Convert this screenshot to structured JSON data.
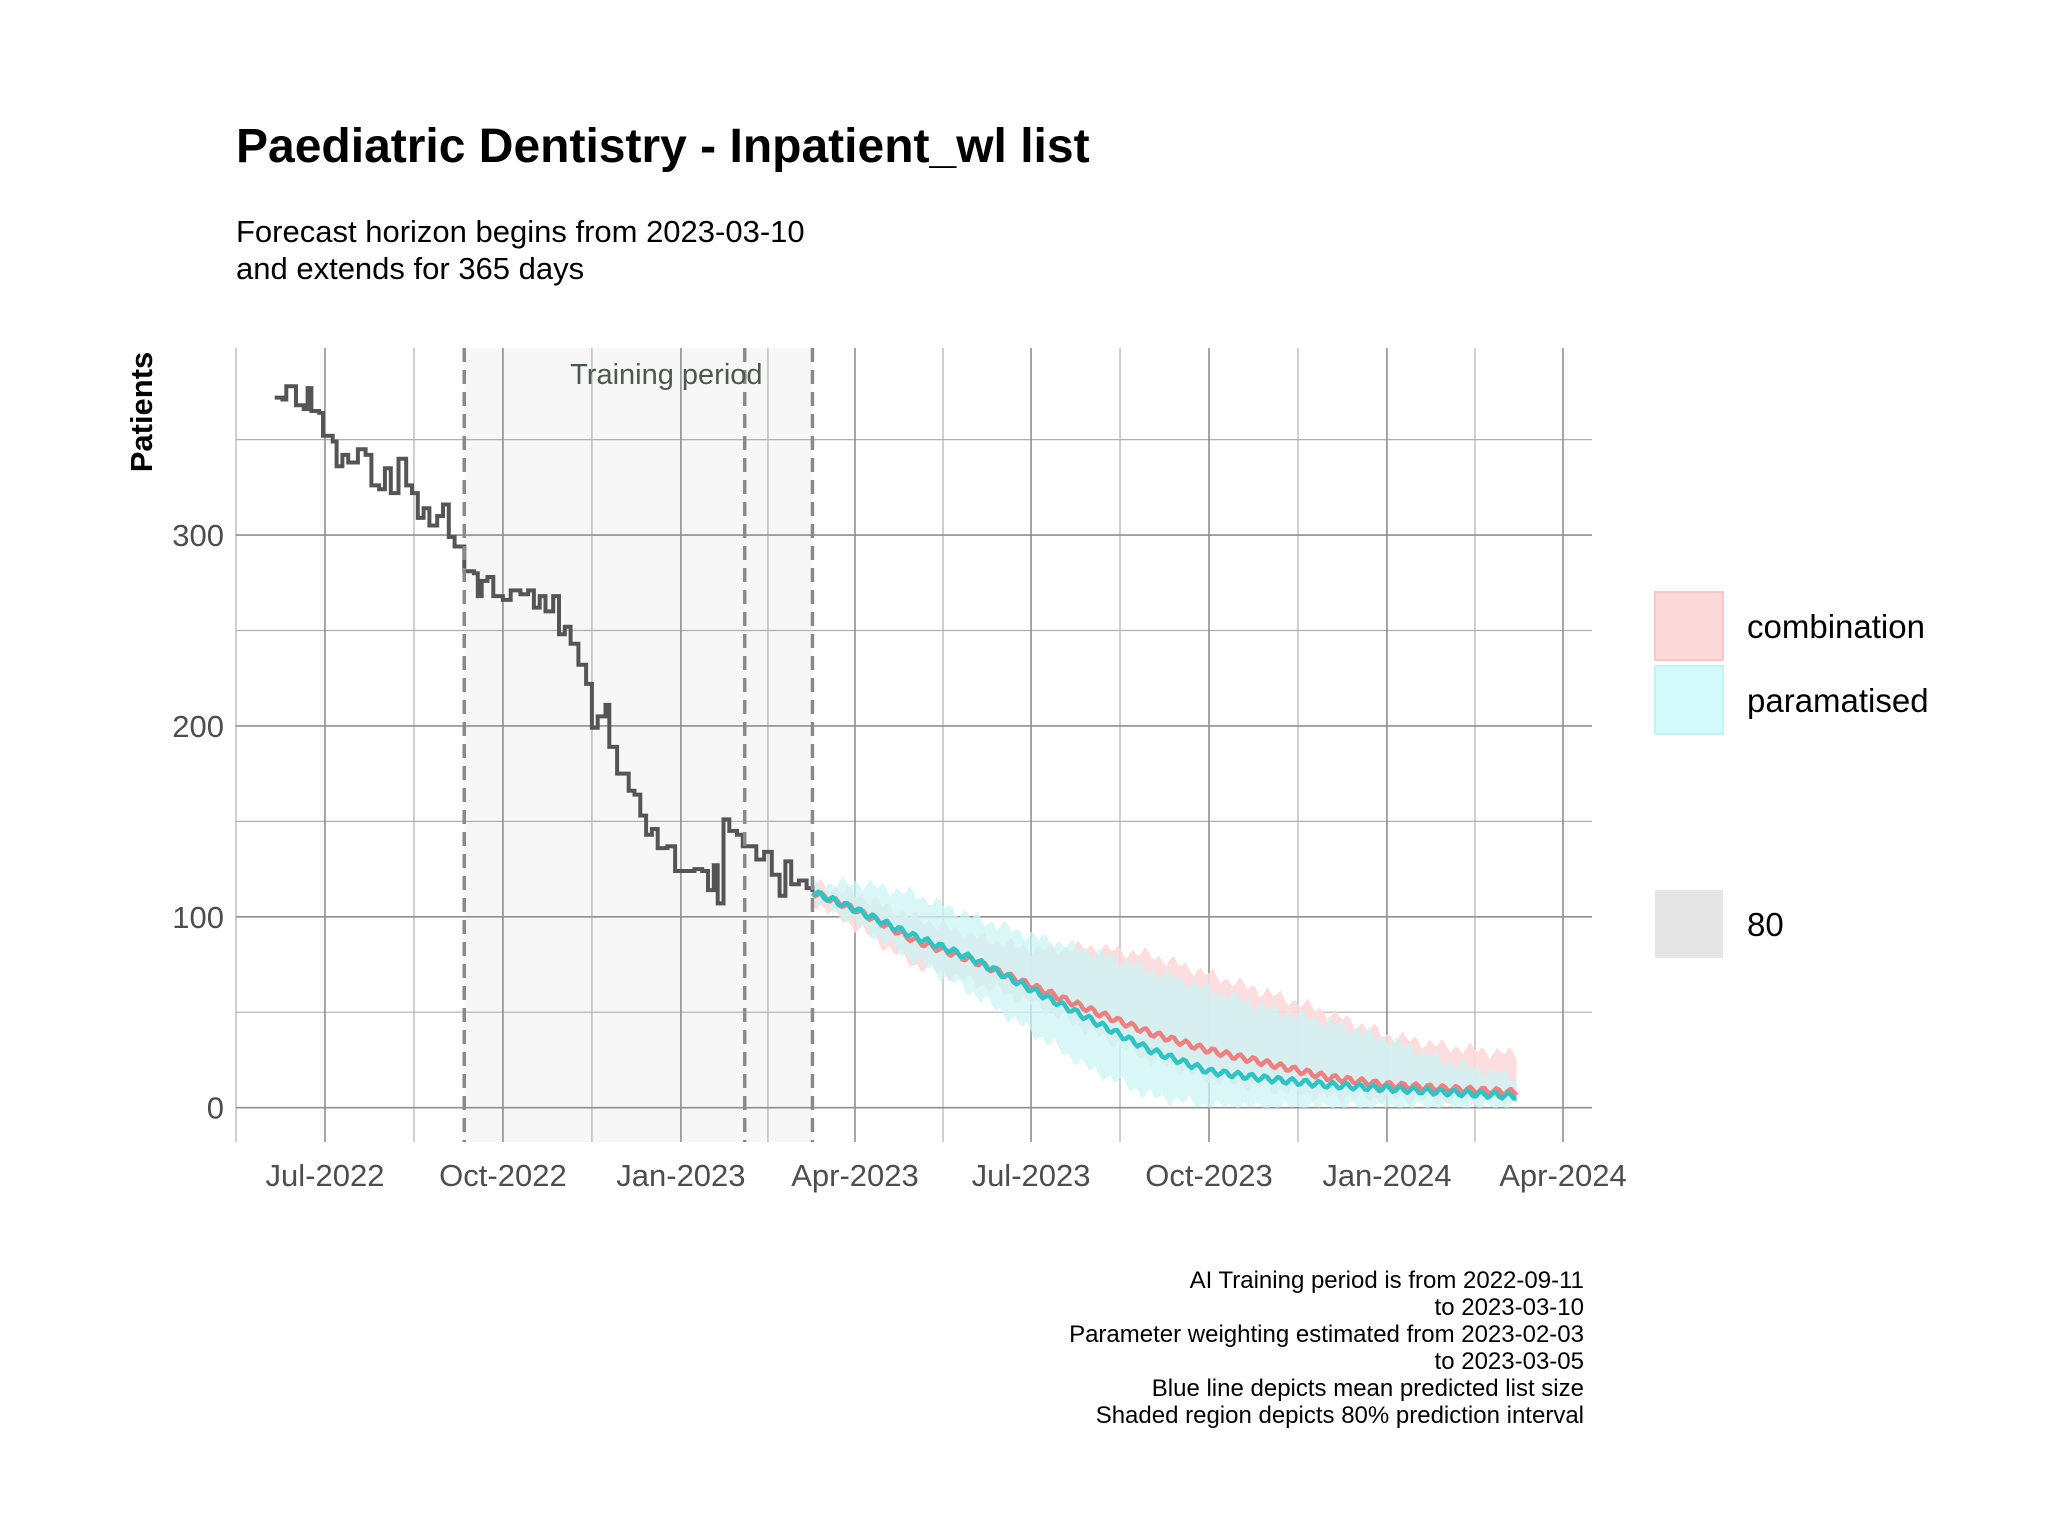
{
  "chart_data": {
    "type": "line",
    "title": "Paediatric Dentistry - Inpatient_wl list",
    "subtitle_lines": [
      "Forecast horizon begins from 2023-03-10",
      "and extends for 365 days"
    ],
    "ylabel": "Patients",
    "xlabel": "",
    "x_axis": {
      "type": "date",
      "range": [
        "2022-05-16",
        "2024-04-16"
      ],
      "ticks": [
        "2022-07-01",
        "2022-10-01",
        "2023-01-01",
        "2023-04-01",
        "2023-07-01",
        "2023-10-01",
        "2024-01-01",
        "2024-04-01"
      ],
      "tick_labels": [
        "Jul-2022",
        "Oct-2022",
        "Jan-2023",
        "Apr-2023",
        "Jul-2023",
        "Oct-2023",
        "Jan-2024",
        "Apr-2024"
      ]
    },
    "y_axis": {
      "range": [
        -18,
        398
      ],
      "ticks": [
        0,
        100,
        200,
        300
      ],
      "tick_labels": [
        "0",
        "100",
        "200",
        "300"
      ]
    },
    "grid": true,
    "training_period": {
      "start": "2022-09-11",
      "end": "2023-03-10",
      "label": "Training period"
    },
    "vlines": [
      "2022-09-11",
      "2023-02-03",
      "2023-03-10"
    ],
    "observed": {
      "color": "#555555",
      "points": [
        [
          "2022-06-05",
          372
        ],
        [
          "2022-06-09",
          371
        ],
        [
          "2022-06-11",
          378
        ],
        [
          "2022-06-14",
          378
        ],
        [
          "2022-06-16",
          368
        ],
        [
          "2022-06-20",
          366
        ],
        [
          "2022-06-22",
          377
        ],
        [
          "2022-06-24",
          365
        ],
        [
          "2022-06-28",
          364
        ],
        [
          "2022-06-30",
          352
        ],
        [
          "2022-07-05",
          349
        ],
        [
          "2022-07-07",
          336
        ],
        [
          "2022-07-10",
          342
        ],
        [
          "2022-07-13",
          338
        ],
        [
          "2022-07-18",
          345
        ],
        [
          "2022-07-22",
          342
        ],
        [
          "2022-07-25",
          326
        ],
        [
          "2022-07-29",
          324
        ],
        [
          "2022-08-01",
          335
        ],
        [
          "2022-08-04",
          322
        ],
        [
          "2022-08-08",
          340
        ],
        [
          "2022-08-12",
          326
        ],
        [
          "2022-08-15",
          322
        ],
        [
          "2022-08-18",
          309
        ],
        [
          "2022-08-21",
          314
        ],
        [
          "2022-08-24",
          305
        ],
        [
          "2022-08-28",
          310
        ],
        [
          "2022-08-31",
          316
        ],
        [
          "2022-09-03",
          299
        ],
        [
          "2022-09-06",
          294
        ],
        [
          "2022-09-11",
          281
        ],
        [
          "2022-09-16",
          280
        ],
        [
          "2022-09-18",
          268
        ],
        [
          "2022-09-20",
          276
        ],
        [
          "2022-09-23",
          278
        ],
        [
          "2022-09-26",
          268
        ],
        [
          "2022-10-01",
          266
        ],
        [
          "2022-10-05",
          271
        ],
        [
          "2022-10-10",
          269
        ],
        [
          "2022-10-14",
          271
        ],
        [
          "2022-10-17",
          262
        ],
        [
          "2022-10-20",
          268
        ],
        [
          "2022-10-23",
          260
        ],
        [
          "2022-10-27",
          268
        ],
        [
          "2022-10-30",
          248
        ],
        [
          "2022-11-02",
          252
        ],
        [
          "2022-11-05",
          243
        ],
        [
          "2022-11-09",
          232
        ],
        [
          "2022-11-13",
          222
        ],
        [
          "2022-11-16",
          199
        ],
        [
          "2022-11-19",
          205
        ],
        [
          "2022-11-23",
          211
        ],
        [
          "2022-11-25",
          189
        ],
        [
          "2022-11-29",
          175
        ],
        [
          "2022-12-02",
          175
        ],
        [
          "2022-12-05",
          166
        ],
        [
          "2022-12-08",
          164
        ],
        [
          "2022-12-11",
          153
        ],
        [
          "2022-12-14",
          143
        ],
        [
          "2022-12-17",
          146
        ],
        [
          "2022-12-20",
          136
        ],
        [
          "2022-12-25",
          137
        ],
        [
          "2022-12-29",
          124
        ],
        [
          "2023-01-03",
          124
        ],
        [
          "2023-01-08",
          125
        ],
        [
          "2023-01-12",
          124
        ],
        [
          "2023-01-15",
          114
        ],
        [
          "2023-01-18",
          127
        ],
        [
          "2023-01-20",
          107
        ],
        [
          "2023-01-23",
          151
        ],
        [
          "2023-01-26",
          145
        ],
        [
          "2023-01-30",
          143
        ],
        [
          "2023-02-02",
          137
        ],
        [
          "2023-02-05",
          137
        ],
        [
          "2023-02-09",
          130
        ],
        [
          "2023-02-13",
          134
        ],
        [
          "2023-02-17",
          122
        ],
        [
          "2023-02-21",
          111
        ],
        [
          "2023-02-24",
          129
        ],
        [
          "2023-02-27",
          117
        ],
        [
          "2023-03-03",
          119
        ],
        [
          "2023-03-07",
          115
        ],
        [
          "2023-03-10",
          113
        ]
      ]
    },
    "series": [
      {
        "name": "combination",
        "color": "#f08080",
        "band_color": "#fcdada",
        "mean": [
          [
            "2023-03-10",
            113
          ],
          [
            "2023-04-01",
            104
          ],
          [
            "2023-05-01",
            88
          ],
          [
            "2023-06-01",
            77
          ],
          [
            "2023-07-01",
            64
          ],
          [
            "2023-08-01",
            51
          ],
          [
            "2023-09-01",
            39
          ],
          [
            "2023-10-01",
            30
          ],
          [
            "2023-11-01",
            23
          ],
          [
            "2023-12-01",
            16
          ],
          [
            "2024-01-01",
            12
          ],
          [
            "2024-02-01",
            10
          ],
          [
            "2024-03-08",
            8
          ]
        ],
        "lower": [
          [
            "2023-03-10",
            108
          ],
          [
            "2023-04-01",
            95
          ],
          [
            "2023-05-01",
            75
          ],
          [
            "2023-06-01",
            66
          ],
          [
            "2023-07-01",
            55
          ],
          [
            "2023-08-01",
            40
          ],
          [
            "2023-09-01",
            25
          ],
          [
            "2023-10-01",
            15
          ],
          [
            "2023-11-01",
            10
          ],
          [
            "2023-12-01",
            6
          ],
          [
            "2024-01-01",
            5
          ],
          [
            "2024-02-01",
            4
          ],
          [
            "2024-03-08",
            4
          ]
        ],
        "upper": [
          [
            "2023-03-10",
            118
          ],
          [
            "2023-04-01",
            112
          ],
          [
            "2023-05-01",
            100
          ],
          [
            "2023-06-01",
            90
          ],
          [
            "2023-07-01",
            83
          ],
          [
            "2023-08-01",
            84
          ],
          [
            "2023-09-01",
            80
          ],
          [
            "2023-10-01",
            70
          ],
          [
            "2023-11-01",
            60
          ],
          [
            "2023-12-01",
            50
          ],
          [
            "2024-01-01",
            38
          ],
          [
            "2024-02-01",
            32
          ],
          [
            "2024-03-08",
            28
          ]
        ]
      },
      {
        "name": "paramatised",
        "color": "#2ec4c4",
        "band_color": "#ccf4f4",
        "mean": [
          [
            "2023-03-10",
            113
          ],
          [
            "2023-04-01",
            104
          ],
          [
            "2023-05-01",
            90
          ],
          [
            "2023-06-01",
            78
          ],
          [
            "2023-07-01",
            62
          ],
          [
            "2023-08-01",
            46
          ],
          [
            "2023-09-01",
            30
          ],
          [
            "2023-10-01",
            19
          ],
          [
            "2023-11-01",
            15
          ],
          [
            "2023-12-01",
            12
          ],
          [
            "2024-01-01",
            10
          ],
          [
            "2024-02-01",
            8
          ],
          [
            "2024-03-08",
            6
          ]
        ],
        "lower": [
          [
            "2023-03-10",
            110
          ],
          [
            "2023-04-01",
            97
          ],
          [
            "2023-05-01",
            78
          ],
          [
            "2023-06-01",
            60
          ],
          [
            "2023-07-01",
            40
          ],
          [
            "2023-08-01",
            20
          ],
          [
            "2023-09-01",
            6
          ],
          [
            "2023-10-01",
            1
          ],
          [
            "2023-11-01",
            0
          ],
          [
            "2023-12-01",
            0
          ],
          [
            "2024-01-01",
            0
          ],
          [
            "2024-02-01",
            0
          ],
          [
            "2024-03-08",
            0
          ]
        ],
        "upper": [
          [
            "2023-03-10",
            116
          ],
          [
            "2023-04-01",
            118
          ],
          [
            "2023-05-01",
            112
          ],
          [
            "2023-06-01",
            100
          ],
          [
            "2023-07-01",
            90
          ],
          [
            "2023-08-01",
            82
          ],
          [
            "2023-09-01",
            72
          ],
          [
            "2023-10-01",
            62
          ],
          [
            "2023-11-01",
            52
          ],
          [
            "2023-12-01",
            45
          ],
          [
            "2024-01-01",
            36
          ],
          [
            "2024-02-01",
            24
          ],
          [
            "2024-03-08",
            16
          ]
        ]
      }
    ],
    "legend": {
      "position": "right",
      "fill_entries": [
        {
          "label": "combination",
          "color": "#fcdada"
        },
        {
          "label": "paramatised",
          "color": "#d4fbfb"
        }
      ],
      "level_entry": {
        "label": "80",
        "color": "#e6e6e6"
      }
    },
    "caption_lines": [
      "AI Training period is from 2022-09-11",
      "to 2023-03-10",
      "Parameter weighting estimated from 2023-02-03",
      "to 2023-03-05",
      "Blue line depicts mean predicted list size",
      "Shaded region depicts 80% prediction interval"
    ]
  }
}
